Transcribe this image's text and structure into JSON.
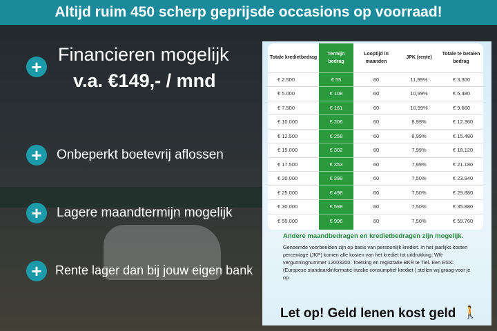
{
  "header": {
    "title": "Altijd ruim 450 scherp geprijsde occasions op voorraad!"
  },
  "left": {
    "headline": "Financieren mogelijk",
    "price": "v.a. €149,- / mnd",
    "benefits": [
      "Onbeperkt boetevrij aflossen",
      "Lagere maandtermijn mogelijk",
      "Rente lager dan bij jouw eigen bank"
    ],
    "plus_icon": "+",
    "accent": "#1b9aaa"
  },
  "table": {
    "headers": [
      "Totale kredietbedrag",
      "Termijn bedrag",
      "Looptijd in maanden",
      "JPK (rente)",
      "Totale te betalen bedrag"
    ],
    "highlight_color": "#2a9a3c",
    "rows": [
      [
        "€ 2.500",
        "€ 55",
        "60",
        "11,99%",
        "€ 3.300"
      ],
      [
        "€ 5.000",
        "€ 108",
        "60",
        "10,99%",
        "€ 6.480"
      ],
      [
        "€ 7.500",
        "€ 161",
        "60",
        "10,99%",
        "€ 9.660"
      ],
      [
        "€ 10.000",
        "€ 206",
        "60",
        "8,99%",
        "€ 12.360"
      ],
      [
        "€ 12.500",
        "€ 258",
        "60",
        "8,99%",
        "€ 15.480"
      ],
      [
        "€ 15.000",
        "€ 302",
        "60",
        "7,99%",
        "€ 18.120"
      ],
      [
        "€ 17.500",
        "€ 353",
        "60",
        "7,99%",
        "€ 21.180"
      ],
      [
        "€ 20.000",
        "€ 399",
        "60",
        "7,50%",
        "€ 23.940"
      ],
      [
        "€ 25.000",
        "€ 498",
        "60",
        "7,50%",
        "€ 29.880"
      ],
      [
        "€ 30.000",
        "€ 598",
        "60",
        "7,50%",
        "€ 35.880"
      ],
      [
        "€ 50.000",
        "€ 996",
        "60",
        "7,50%",
        "€ 59.760"
      ]
    ]
  },
  "note": {
    "heading": "Andere maandbedragen en kredietbedragen zijn mogelijk.",
    "body": "Genoemde voorbeelden zijn op basis van persoonlijk krediet. In het jaarlijks kosten percentage (JKP) komen alle kosten van het krediet tot uitdrukking. Wft-vergunningnummer 12003200. Toetsing en registratie BKR te Tiel. Een ESIC (Europese standaardinformatie inzake consumptief krediet ) stellen wij graag voor je op.",
    "warning": "Let op! Geld lenen kost geld",
    "warning_icon": "walking-person-icon"
  }
}
